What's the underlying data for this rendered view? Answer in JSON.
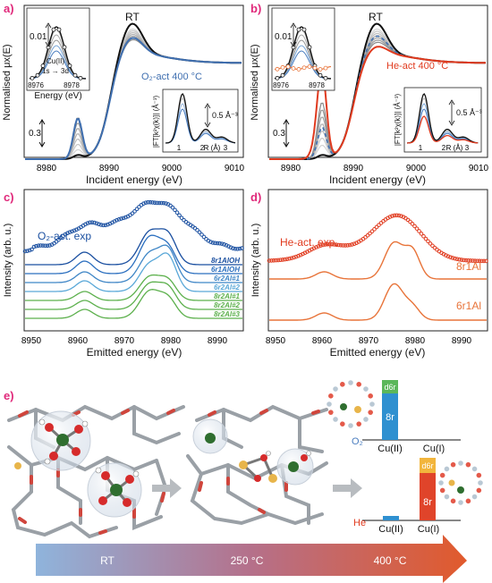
{
  "colors": {
    "panel_label": "#e0287a",
    "black": "#111111",
    "gray": "#9a9a9a",
    "blue": "#1a4fa0",
    "blue_light": "#3f86c6",
    "cyan": "#5aa8d8",
    "green": "#5cb04c",
    "red": "#e03a1e",
    "orange": "#e8743a",
    "arrow_start": "#8fb4dc",
    "arrow_end": "#e15a2c"
  },
  "panel_a": {
    "label": "a)",
    "ylabel": "Normalised μx(E)",
    "xlabel": "Incident energy (eV)",
    "rt_label": "RT",
    "legend": "O₂-act 400 °C",
    "scale_bar": "0.3",
    "x_ticks": [
      "8980",
      "8990",
      "9000",
      "9010"
    ],
    "inset_pre": {
      "scale": "0.01",
      "ann1": "Cu(II)",
      "ann2": "1s → 3d",
      "xlabel": "Energy (eV)",
      "ticks": [
        "8976",
        "8978"
      ]
    },
    "inset_ft": {
      "ylabel": "|FT[k²χ(k)]| (Å⁻³)",
      "xlabel": "R (Å)",
      "ticks": [
        "1",
        "2",
        "3"
      ],
      "scale": "0.5 Å⁻³"
    }
  },
  "panel_b": {
    "label": "b)",
    "ylabel": "Normalised μx(E)",
    "xlabel": "Incident energy (eV)",
    "rt_label": "RT",
    "legend": "He-act 400 °C",
    "scale_bar": "0.3",
    "x_ticks": [
      "8980",
      "8990",
      "9000",
      "9010"
    ],
    "inset_pre": {
      "scale": "0.01",
      "ticks": [
        "8976",
        "8978"
      ]
    },
    "inset_ft": {
      "ylabel": "|FT[k²χ(k)]| (Å⁻³)",
      "xlabel": "R (Å)",
      "ticks": [
        "1",
        "2",
        "3"
      ],
      "scale": "0.5 Å⁻³"
    }
  },
  "panel_c": {
    "label": "c)",
    "ylabel": "Intensity (arb. u.)",
    "xlabel": "Emitted energy (eV)",
    "exp_label": "O₂-act. exp",
    "series": [
      "8r1AlOH",
      "6r1AlOH",
      "6r2Al#1",
      "6r2Al#2",
      "8r2Al#1",
      "8r2Al#2",
      "8r2Al#3"
    ],
    "x_ticks": [
      "8950",
      "8960",
      "8970",
      "8980",
      "8990"
    ]
  },
  "panel_d": {
    "label": "d)",
    "ylabel": "Intensity (arb. u.)",
    "xlabel": "Emitted energy (eV)",
    "exp_label": "He-act. exp.",
    "series": [
      "8r1Al",
      "6r1Al"
    ],
    "x_ticks": [
      "8950",
      "8960",
      "8970",
      "8980",
      "8990"
    ]
  },
  "panel_e": {
    "label": "e)",
    "o2_label": "O₂",
    "he_label": "He",
    "top_bars": {
      "left": "Cu(II)",
      "right": "Cu(I)",
      "seg_d6r": "d6r",
      "seg_8r": "8r"
    },
    "bottom_bars": {
      "left": "Cu(II)",
      "right": "Cu(I)",
      "seg_d6r": "d6r",
      "seg_8r": "8r"
    },
    "temperature_arrow": [
      "RT",
      "250 °C",
      "400 °C"
    ]
  },
  "chart_data": [
    {
      "type": "line",
      "panel": "a",
      "xlabel": "Incident energy (eV)",
      "ylabel": "Normalised μx(E)",
      "xlim": [
        8975,
        9010
      ],
      "x_ticks": [
        8980,
        8990,
        9000,
        9010
      ],
      "series_count_gray": 7,
      "series": [
        {
          "name": "RT",
          "color": "#111111"
        },
        {
          "name": "O₂-act 400 °C",
          "color": "#3f6fb0"
        }
      ]
    },
    {
      "type": "line",
      "panel": "b",
      "xlabel": "Incident energy (eV)",
      "ylabel": "Normalised μx(E)",
      "xlim": [
        8975,
        9010
      ],
      "x_ticks": [
        8980,
        8990,
        9000,
        9010
      ],
      "series": [
        {
          "name": "RT",
          "color": "#111111"
        },
        {
          "name": "He-act 400 °C",
          "color": "#e03a1e"
        }
      ]
    },
    {
      "type": "line",
      "panel": "c",
      "xlabel": "Emitted energy (eV)",
      "ylabel": "Intensity (arb. u.)",
      "xlim": [
        8948,
        8995
      ],
      "x_ticks": [
        8950,
        8960,
        8970,
        8980,
        8990
      ],
      "peaks_eV": [
        8961,
        8975,
        8979
      ],
      "series": [
        "O₂-act. exp",
        "8r1AlOH",
        "6r1AlOH",
        "6r2Al#1",
        "6r2Al#2",
        "8r2Al#1",
        "8r2Al#2",
        "8r2Al#3"
      ]
    },
    {
      "type": "line",
      "panel": "d",
      "xlabel": "Emitted energy (eV)",
      "ylabel": "Intensity (arb. u.)",
      "xlim": [
        8948,
        8995
      ],
      "x_ticks": [
        8950,
        8960,
        8970,
        8980,
        8990
      ],
      "peaks_eV": [
        8960,
        8975,
        8979
      ],
      "series": [
        "He-act. exp.",
        "8r1Al",
        "6r1Al"
      ]
    }
  ]
}
